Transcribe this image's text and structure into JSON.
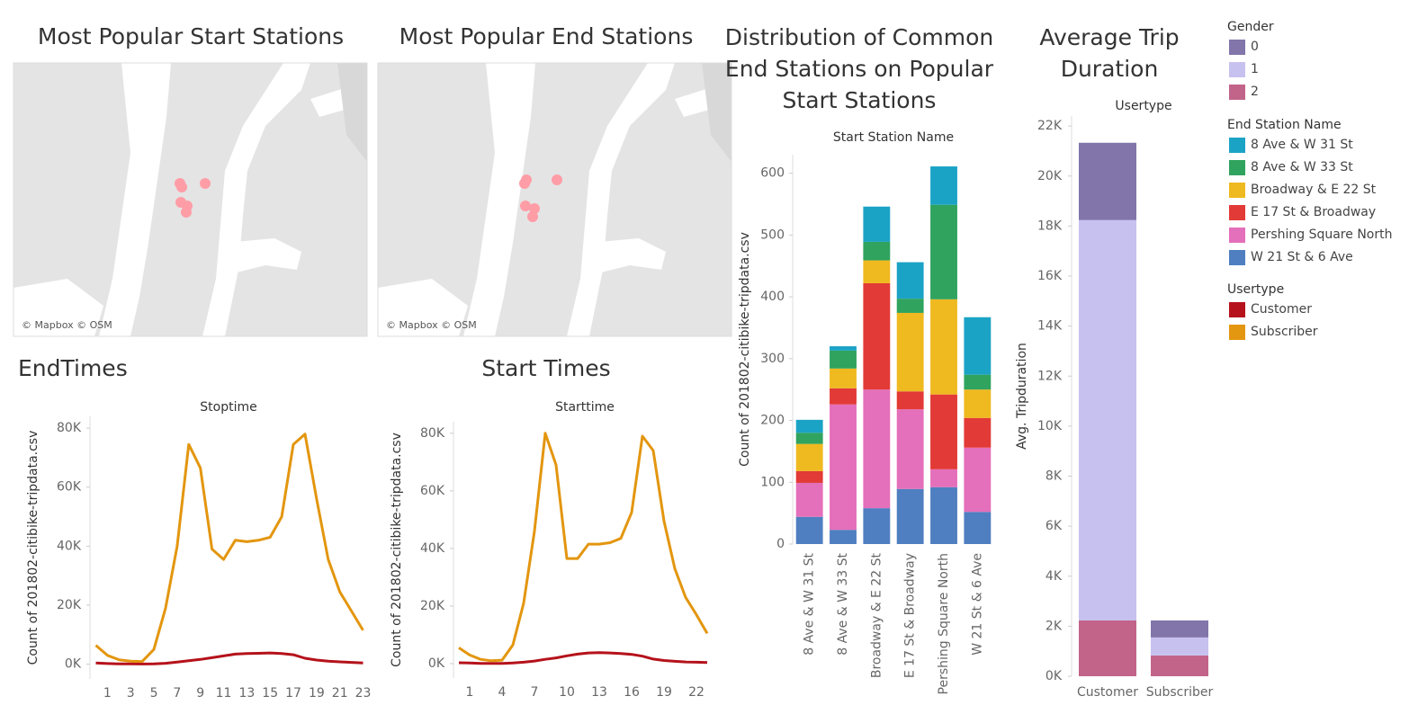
{
  "maps": [
    {
      "title": "Most Popular Start Stations",
      "attribution": "© Mapbox © OSM"
    },
    {
      "title": "Most Popular End Stations",
      "attribution": "© Mapbox © OSM"
    }
  ],
  "chart_data": [
    {
      "type": "line",
      "title": "EndTimes",
      "subtitle": "Stoptime",
      "y_label": "Count of 201802-citibike-tripdata.csv",
      "legend_title": "Usertype",
      "x": [
        0,
        1,
        2,
        3,
        4,
        5,
        6,
        7,
        8,
        9,
        10,
        11,
        12,
        13,
        14,
        15,
        16,
        17,
        18,
        19,
        20,
        21,
        22,
        23
      ],
      "series": [
        {
          "name": "Customer",
          "color": "#b5121b",
          "values": [
            400,
            200,
            100,
            100,
            50,
            100,
            300,
            700,
            1200,
            1600,
            2200,
            2800,
            3400,
            3600,
            3700,
            3800,
            3600,
            3200,
            2000,
            1400,
            1000,
            800,
            600,
            400
          ]
        },
        {
          "name": "Subscriber",
          "color": "#e3960f",
          "values": [
            6400,
            3000,
            1500,
            1000,
            900,
            5000,
            19000,
            40000,
            74500,
            66500,
            39000,
            35500,
            42000,
            41500,
            42000,
            43000,
            50000,
            74500,
            78000,
            56000,
            35500,
            24500,
            18000,
            11500
          ]
        }
      ],
      "xlim": [
        -0.5,
        23.5
      ],
      "xticks": [
        1,
        3,
        5,
        7,
        9,
        11,
        13,
        15,
        17,
        19,
        21,
        23
      ],
      "ylim": [
        -5000,
        84000
      ],
      "yticks": [
        {
          "value": 0,
          "label": "0K"
        },
        {
          "value": 20000,
          "label": "20K"
        },
        {
          "value": 40000,
          "label": "40K"
        },
        {
          "value": 60000,
          "label": "60K"
        },
        {
          "value": 80000,
          "label": "80K"
        }
      ]
    },
    {
      "type": "line",
      "title": "Start Times",
      "subtitle": "Starttime",
      "y_label": "Count of 201802-citibike-tripdata.csv",
      "x": [
        0,
        1,
        2,
        3,
        4,
        5,
        6,
        7,
        8,
        9,
        10,
        11,
        12,
        13,
        14,
        15,
        16,
        17,
        18,
        19,
        20,
        21,
        22,
        23
      ],
      "series": [
        {
          "color": "#b5121b",
          "values": [
            300,
            200,
            100,
            100,
            100,
            200,
            500,
            900,
            1500,
            2000,
            2700,
            3300,
            3700,
            3800,
            3700,
            3500,
            3200,
            2600,
            1600,
            1100,
            800,
            600,
            500,
            400
          ]
        },
        {
          "color": "#e3960f",
          "values": [
            5500,
            3000,
            1500,
            1000,
            1200,
            6500,
            21000,
            46000,
            80000,
            69000,
            36500,
            36500,
            41500,
            41500,
            42000,
            43500,
            52500,
            79000,
            74000,
            49500,
            33000,
            23000,
            17000,
            10500
          ]
        }
      ],
      "xlim": [
        -0.5,
        23.5
      ],
      "xticks": [
        1,
        4,
        7,
        10,
        13,
        16,
        19,
        22
      ],
      "ylim": [
        -5000,
        84000
      ],
      "yticks": [
        {
          "value": 0,
          "label": "0K"
        },
        {
          "value": 20000,
          "label": "20K"
        },
        {
          "value": 40000,
          "label": "40K"
        },
        {
          "value": 60000,
          "label": "60K"
        },
        {
          "value": 80000,
          "label": "80K"
        }
      ]
    },
    {
      "type": "bar",
      "stacked": true,
      "title": "Distribution of Common End Stations on Popular Start Stations",
      "subtitle": "Start Station Name",
      "y_label": "Count of 201802-citibike-tripdata.csv",
      "legend_title": "End Station Name",
      "categories": [
        "8 Ave & W 31 St",
        "8 Ave & W 33 St",
        "Broadway & E 22 St",
        "E 17 St & Broadway",
        "Pershing Square North",
        "W 21 St & 6 Ave"
      ],
      "series": [
        {
          "name": "8 Ave & W 31 St",
          "color": "#1ba3c6",
          "values": [
            21,
            7,
            57,
            59,
            62,
            93
          ]
        },
        {
          "name": "8 Ave & W 33 St",
          "color": "#30a35e",
          "values": [
            18,
            29,
            30,
            23,
            153,
            24
          ]
        },
        {
          "name": "Broadway & E 22 St",
          "color": "#efb920",
          "values": [
            44,
            32,
            37,
            127,
            154,
            46
          ]
        },
        {
          "name": "E 17 St & Broadway",
          "color": "#e23a36",
          "values": [
            19,
            26,
            172,
            29,
            121,
            48
          ]
        },
        {
          "name": "Pershing Square North",
          "color": "#e46fba",
          "values": [
            55,
            203,
            192,
            129,
            29,
            104
          ]
        },
        {
          "name": "W 21 St & 6 Ave",
          "color": "#4f7fc0",
          "values": [
            44,
            23,
            58,
            89,
            92,
            52
          ]
        }
      ],
      "ylim": [
        0,
        630
      ],
      "yticks": [
        0,
        100,
        200,
        300,
        400,
        500,
        600
      ]
    },
    {
      "type": "bar",
      "stacked": true,
      "title": "Average Trip Duration",
      "subtitle": "Usertype",
      "y_label": "Avg. Tripduration",
      "legend_title": "Gender",
      "categories": [
        "Customer",
        "Subscriber"
      ],
      "series": [
        {
          "name": "0",
          "color": "#8175aa",
          "values": [
            3090,
            680
          ]
        },
        {
          "name": "1",
          "color": "#c7c1ef",
          "values": [
            16010,
            720
          ]
        },
        {
          "name": "2",
          "color": "#c26489",
          "values": [
            2230,
            830
          ]
        }
      ],
      "ylim": [
        0,
        22400
      ],
      "yticks": [
        {
          "value": 0,
          "label": "0K"
        },
        {
          "value": 2000,
          "label": "2K"
        },
        {
          "value": 4000,
          "label": "4K"
        },
        {
          "value": 6000,
          "label": "6K"
        },
        {
          "value": 8000,
          "label": "8K"
        },
        {
          "value": 10000,
          "label": "10K"
        },
        {
          "value": 12000,
          "label": "12K"
        },
        {
          "value": 14000,
          "label": "14K"
        },
        {
          "value": 16000,
          "label": "16K"
        },
        {
          "value": 18000,
          "label": "18K"
        },
        {
          "value": 20000,
          "label": "20K"
        },
        {
          "value": 22000,
          "label": "22K"
        }
      ]
    }
  ]
}
